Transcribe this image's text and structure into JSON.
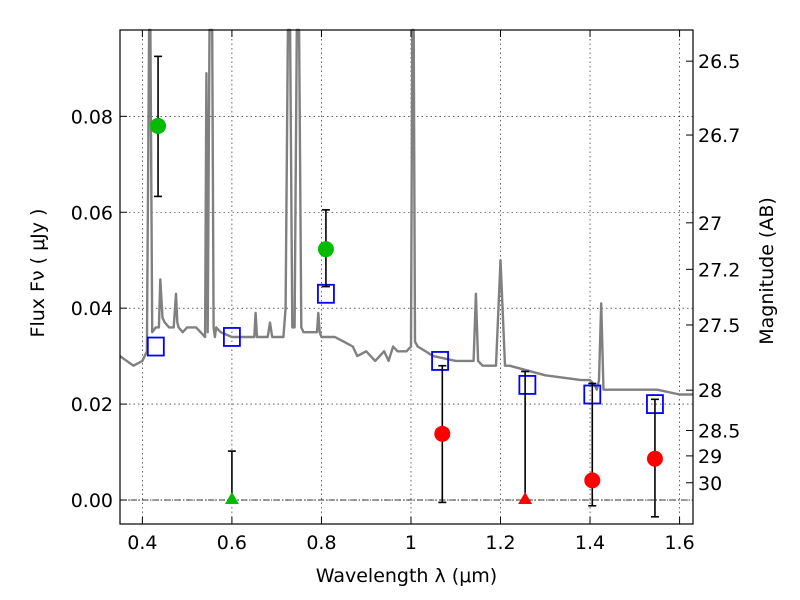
{
  "chart_data": {
    "type": "scatter",
    "xlabel": "Wavelength  λ (μm)",
    "ylabel": "Flux  Fν  ( μJy )",
    "y2label": "Magnitude (AB)",
    "xlim": [
      0.35,
      1.63
    ],
    "ylim": [
      -0.005,
      0.098
    ],
    "xticks": [
      0.4,
      0.6,
      0.8,
      1.0,
      1.2,
      1.4,
      1.6
    ],
    "xtick_labels": [
      "0.4",
      "0.6",
      "0.8",
      "1",
      "1.2",
      "1.4",
      "1.6"
    ],
    "yticks": [
      0.0,
      0.02,
      0.04,
      0.06,
      0.08
    ],
    "ytick_labels": [
      "0.00",
      "0.02",
      "0.04",
      "0.06",
      "0.08"
    ],
    "y2ticks": [
      {
        "label": "26.5",
        "flux": 0.0915
      },
      {
        "label": "26.7",
        "flux": 0.0761
      },
      {
        "label": "27",
        "flux": 0.0578
      },
      {
        "label": "27.2",
        "flux": 0.0481
      },
      {
        "label": "27.5",
        "flux": 0.0365
      },
      {
        "label": "28",
        "flux": 0.0229
      },
      {
        "label": "28.5",
        "flux": 0.0145
      },
      {
        "label": "29",
        "flux": 0.0092
      },
      {
        "label": "30",
        "flux": 0.0036
      }
    ],
    "grid": true,
    "colors": {
      "spectrum": "#808080",
      "model": "#0000ff",
      "detection": "#00bb00",
      "faint": "#ff0000",
      "upper_limit_detected": "#00bb00",
      "upper_limit_faint": "#ff0000",
      "errorbar": "#000000",
      "zero_line": "#000000"
    },
    "spectrum": {
      "x": [
        0.35,
        0.38,
        0.4,
        0.41,
        0.415,
        0.418,
        0.422,
        0.43,
        0.437,
        0.44,
        0.445,
        0.45,
        0.46,
        0.47,
        0.475,
        0.478,
        0.481,
        0.49,
        0.5,
        0.52,
        0.54,
        0.543,
        0.546,
        0.55,
        0.553,
        0.556,
        0.559,
        0.562,
        0.565,
        0.575,
        0.6,
        0.63,
        0.65,
        0.653,
        0.656,
        0.66,
        0.68,
        0.685,
        0.69,
        0.7,
        0.715,
        0.72,
        0.725,
        0.73,
        0.735,
        0.74,
        0.745,
        0.75,
        0.755,
        0.76,
        0.78,
        0.79,
        0.793,
        0.796,
        0.8,
        0.83,
        0.85,
        0.87,
        0.88,
        0.9,
        0.92,
        0.94,
        0.95,
        0.96,
        0.97,
        0.98,
        0.99,
        1.0,
        1.003,
        1.006,
        1.009,
        1.015,
        1.05,
        1.1,
        1.14,
        1.145,
        1.15,
        1.16,
        1.19,
        1.2,
        1.21,
        1.22,
        1.3,
        1.38,
        1.4,
        1.41,
        1.415,
        1.42,
        1.425,
        1.43,
        1.45,
        1.5,
        1.55,
        1.6,
        1.63
      ],
      "y": [
        0.03,
        0.028,
        0.029,
        0.031,
        0.098,
        0.098,
        0.035,
        0.036,
        0.036,
        0.046,
        0.038,
        0.037,
        0.036,
        0.036,
        0.043,
        0.037,
        0.036,
        0.035,
        0.036,
        0.036,
        0.034,
        0.089,
        0.035,
        0.098,
        0.098,
        0.098,
        0.036,
        0.034,
        0.036,
        0.035,
        0.034,
        0.034,
        0.034,
        0.039,
        0.034,
        0.034,
        0.034,
        0.037,
        0.034,
        0.034,
        0.034,
        0.04,
        0.098,
        0.098,
        0.036,
        0.036,
        0.098,
        0.098,
        0.036,
        0.035,
        0.035,
        0.035,
        0.039,
        0.035,
        0.034,
        0.034,
        0.033,
        0.032,
        0.03,
        0.031,
        0.029,
        0.031,
        0.029,
        0.032,
        0.031,
        0.031,
        0.031,
        0.032,
        0.098,
        0.098,
        0.033,
        0.032,
        0.03,
        0.029,
        0.029,
        0.043,
        0.029,
        0.028,
        0.028,
        0.05,
        0.028,
        0.028,
        0.026,
        0.025,
        0.025,
        0.024,
        0.023,
        0.025,
        0.041,
        0.023,
        0.023,
        0.023,
        0.023,
        0.022,
        0.022
      ]
    },
    "series": [
      {
        "name": "",
        "kind": "model",
        "marker": "square-open",
        "x": [
          0.43,
          0.6,
          0.81,
          1.065,
          1.26,
          1.405,
          1.545
        ],
        "y": [
          0.032,
          0.034,
          0.043,
          0.029,
          0.024,
          0.022,
          0.02
        ]
      },
      {
        "name": "",
        "kind": "detection",
        "marker": "circle",
        "x": [
          0.435,
          0.81
        ],
        "y": [
          0.078,
          0.0523
        ],
        "err_low": [
          0.0633,
          0.0445
        ],
        "err_high": [
          0.0925,
          0.0605
        ]
      },
      {
        "name": "",
        "kind": "faint",
        "marker": "circle",
        "x": [
          1.07,
          1.405,
          1.545
        ],
        "y": [
          0.0138,
          0.0041,
          0.0086
        ],
        "err_low": [
          -0.0005,
          -0.0012,
          -0.0035
        ],
        "err_high": [
          0.028,
          0.0243,
          0.021
        ]
      },
      {
        "name": "",
        "kind": "upper_limit",
        "marker": "triangle",
        "x": [
          0.6,
          1.255
        ],
        "y": [
          0.0,
          0.0
        ],
        "err_high": [
          0.0102,
          0.0268
        ],
        "colors": [
          "#00bb00",
          "#ff0000"
        ]
      }
    ]
  }
}
